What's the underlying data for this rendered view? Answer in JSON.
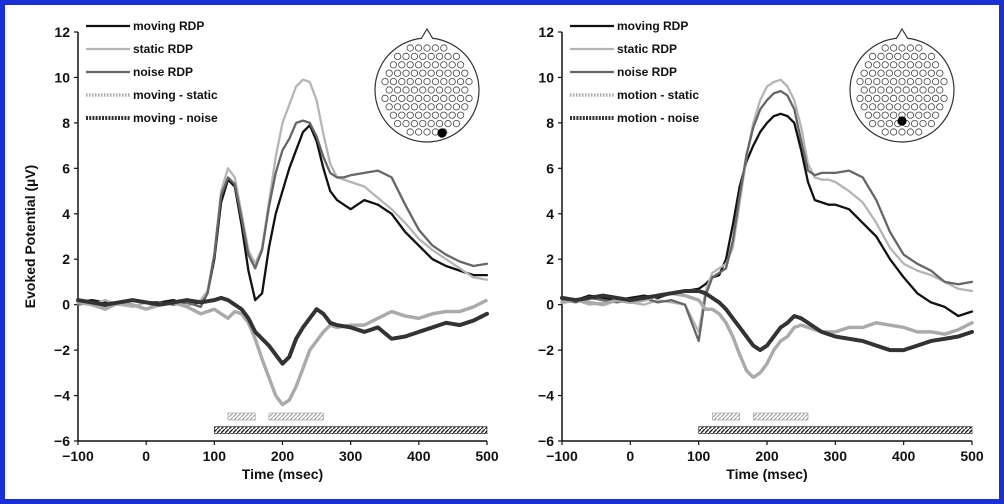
{
  "colors": {
    "frame": "#1a2fd6",
    "moving": "#111111",
    "static": "#b5b5b5",
    "noise": "#666666",
    "diff_static": "#aaaaaa",
    "diff_noise": "#333333"
  },
  "chart_data": [
    {
      "type": "line",
      "xlabel": "Time (msec)",
      "ylabel": "Evoked Potential (µV)",
      "xlim": [
        -100,
        500
      ],
      "ylim": [
        -6,
        12
      ],
      "xticks": [
        -100,
        0,
        100,
        200,
        300,
        400,
        500
      ],
      "yticks": [
        -6,
        -4,
        -2,
        0,
        2,
        4,
        6,
        8,
        10,
        12
      ],
      "legend_position": "top-left",
      "electrode": {
        "highlighted": "right-posterior"
      },
      "series": [
        {
          "name": "moving RDP",
          "style": "solid",
          "color": "#111111",
          "x": [
            -100,
            -80,
            -60,
            -40,
            -20,
            0,
            20,
            40,
            60,
            80,
            90,
            100,
            110,
            120,
            130,
            140,
            150,
            160,
            170,
            180,
            190,
            200,
            210,
            220,
            230,
            240,
            250,
            260,
            270,
            280,
            290,
            300,
            320,
            340,
            360,
            380,
            400,
            420,
            440,
            460,
            480,
            500
          ],
          "y": [
            0.1,
            0.2,
            0.1,
            0.0,
            0.2,
            0.1,
            0.1,
            0.2,
            0.0,
            0.1,
            0.5,
            2.0,
            4.5,
            5.5,
            5.2,
            3.5,
            1.5,
            0.2,
            0.5,
            2.5,
            4.0,
            5.0,
            6.0,
            6.8,
            7.6,
            7.9,
            7.2,
            6.0,
            5.0,
            4.6,
            4.4,
            4.2,
            4.6,
            4.4,
            4.0,
            3.2,
            2.6,
            2.0,
            1.7,
            1.5,
            1.3,
            1.3
          ]
        },
        {
          "name": "static RDP",
          "style": "solid",
          "color": "#b5b5b5",
          "x": [
            -100,
            -80,
            -60,
            -40,
            -20,
            0,
            20,
            40,
            60,
            80,
            90,
            100,
            110,
            120,
            130,
            140,
            150,
            160,
            170,
            180,
            190,
            200,
            210,
            220,
            230,
            240,
            250,
            260,
            270,
            280,
            290,
            300,
            320,
            340,
            360,
            380,
            400,
            420,
            440,
            460,
            480,
            500
          ],
          "y": [
            0.1,
            0.0,
            0.2,
            0.0,
            -0.1,
            0.1,
            0.0,
            0.1,
            0.0,
            0.2,
            0.6,
            2.2,
            5.0,
            6.0,
            5.6,
            4.0,
            2.4,
            1.8,
            2.5,
            4.5,
            6.5,
            8.0,
            8.8,
            9.6,
            9.9,
            9.8,
            9.0,
            7.5,
            6.2,
            5.6,
            5.5,
            5.4,
            5.2,
            4.7,
            4.2,
            3.6,
            2.9,
            2.4,
            2.0,
            1.6,
            1.2,
            1.1
          ]
        },
        {
          "name": "noise RDP",
          "style": "solid",
          "color": "#666666",
          "x": [
            -100,
            -80,
            -60,
            -40,
            -20,
            0,
            20,
            40,
            60,
            80,
            90,
            100,
            110,
            120,
            130,
            140,
            150,
            160,
            170,
            180,
            190,
            200,
            210,
            220,
            230,
            240,
            250,
            260,
            270,
            280,
            290,
            300,
            320,
            340,
            360,
            380,
            400,
            420,
            440,
            460,
            480,
            500
          ],
          "y": [
            0.0,
            0.1,
            -0.1,
            0.1,
            0.0,
            -0.2,
            0.1,
            0.0,
            0.1,
            -0.1,
            0.5,
            2.2,
            4.8,
            5.6,
            5.3,
            3.8,
            2.2,
            1.6,
            2.4,
            4.3,
            5.8,
            6.8,
            7.3,
            8.0,
            8.1,
            8.0,
            7.4,
            6.5,
            5.8,
            5.6,
            5.6,
            5.7,
            5.8,
            5.9,
            5.6,
            4.4,
            3.3,
            2.6,
            2.2,
            1.9,
            1.7,
            1.8
          ]
        },
        {
          "name": "moving - static",
          "style": "dotted",
          "color": "#aaaaaa",
          "x": [
            -100,
            -80,
            -60,
            -40,
            -20,
            0,
            20,
            40,
            60,
            80,
            100,
            110,
            120,
            130,
            140,
            150,
            160,
            170,
            180,
            190,
            200,
            210,
            220,
            230,
            240,
            250,
            260,
            270,
            280,
            300,
            320,
            340,
            360,
            380,
            400,
            420,
            440,
            460,
            480,
            500
          ],
          "y": [
            0.1,
            0.0,
            -0.2,
            0.1,
            0.0,
            -0.2,
            0.0,
            0.1,
            -0.1,
            -0.4,
            -0.2,
            -0.4,
            -0.6,
            -0.3,
            -0.4,
            -0.8,
            -1.5,
            -2.4,
            -3.2,
            -4.0,
            -4.4,
            -4.2,
            -3.6,
            -2.8,
            -2.0,
            -1.6,
            -1.2,
            -0.9,
            -1.0,
            -0.9,
            -0.9,
            -0.6,
            -0.3,
            -0.5,
            -0.6,
            -0.4,
            -0.3,
            -0.3,
            -0.1,
            0.2
          ]
        },
        {
          "name": "moving - noise",
          "style": "beaded",
          "color": "#333333",
          "x": [
            -100,
            -80,
            -60,
            -40,
            -20,
            0,
            20,
            40,
            60,
            80,
            100,
            110,
            120,
            130,
            140,
            150,
            160,
            170,
            180,
            190,
            200,
            210,
            220,
            230,
            240,
            250,
            260,
            270,
            280,
            300,
            320,
            340,
            360,
            380,
            400,
            420,
            440,
            460,
            480,
            500
          ],
          "y": [
            0.2,
            0.1,
            0.0,
            0.1,
            0.2,
            0.1,
            0.0,
            0.1,
            0.2,
            0.1,
            0.2,
            0.3,
            0.2,
            0.0,
            -0.2,
            -0.6,
            -1.2,
            -1.5,
            -1.8,
            -2.2,
            -2.6,
            -2.3,
            -1.5,
            -1.0,
            -0.6,
            -0.2,
            -0.4,
            -0.8,
            -0.9,
            -1.0,
            -1.2,
            -1.0,
            -1.5,
            -1.4,
            -1.2,
            -1.0,
            -0.8,
            -0.9,
            -0.7,
            -0.4
          ]
        }
      ],
      "significance_bars": [
        {
          "series": "moving - static",
          "y": -4.9,
          "ranges": [
            [
              120,
              160
            ],
            [
              180,
              260
            ]
          ]
        },
        {
          "series": "moving - noise",
          "y": -5.5,
          "ranges": [
            [
              100,
              500
            ]
          ]
        }
      ]
    },
    {
      "type": "line",
      "xlabel": "Time (msec)",
      "ylabel": "",
      "xlim": [
        -100,
        500
      ],
      "ylim": [
        -6,
        12
      ],
      "xticks": [
        -100,
        0,
        100,
        200,
        300,
        400,
        500
      ],
      "yticks": [
        -6,
        -4,
        -2,
        0,
        2,
        4,
        6,
        8,
        10,
        12
      ],
      "legend_position": "top-left",
      "electrode": {
        "highlighted": "central-posterior"
      },
      "series": [
        {
          "name": "moving RDP",
          "style": "solid",
          "color": "#111111",
          "x": [
            -100,
            -80,
            -60,
            -40,
            -20,
            0,
            20,
            40,
            60,
            80,
            100,
            110,
            120,
            130,
            140,
            150,
            160,
            170,
            180,
            190,
            200,
            210,
            220,
            230,
            240,
            250,
            260,
            270,
            280,
            290,
            300,
            320,
            340,
            360,
            380,
            400,
            420,
            440,
            460,
            480,
            500
          ],
          "y": [
            0.3,
            0.2,
            0.4,
            0.3,
            0.2,
            0.3,
            0.4,
            0.3,
            0.5,
            0.6,
            0.7,
            0.9,
            1.2,
            1.3,
            2.0,
            3.5,
            5.2,
            6.3,
            7.0,
            7.6,
            8.0,
            8.3,
            8.4,
            8.3,
            8.0,
            6.8,
            5.4,
            4.6,
            4.5,
            4.4,
            4.4,
            4.2,
            3.6,
            3.0,
            2.0,
            1.2,
            0.5,
            0.1,
            -0.1,
            -0.5,
            -0.3
          ]
        },
        {
          "name": "static RDP",
          "style": "solid",
          "color": "#b5b5b5",
          "x": [
            -100,
            -80,
            -60,
            -40,
            -20,
            0,
            20,
            40,
            60,
            80,
            100,
            110,
            120,
            130,
            140,
            150,
            160,
            170,
            180,
            190,
            200,
            210,
            220,
            230,
            240,
            250,
            260,
            270,
            280,
            290,
            300,
            320,
            340,
            360,
            380,
            400,
            420,
            440,
            460,
            480,
            500
          ],
          "y": [
            0.1,
            0.2,
            0.0,
            0.1,
            0.2,
            0.1,
            0.0,
            0.2,
            0.1,
            0.0,
            -1.2,
            0.6,
            1.4,
            1.6,
            1.8,
            2.5,
            4.5,
            6.5,
            8.0,
            9.0,
            9.6,
            9.8,
            9.9,
            9.6,
            9.0,
            7.8,
            6.2,
            5.6,
            5.5,
            5.5,
            5.4,
            5.0,
            4.5,
            3.6,
            2.5,
            1.8,
            1.5,
            1.3,
            1.0,
            0.7,
            0.6
          ]
        },
        {
          "name": "noise RDP",
          "style": "solid",
          "color": "#666666",
          "x": [
            -100,
            -80,
            -60,
            -40,
            -20,
            0,
            20,
            40,
            60,
            80,
            100,
            110,
            120,
            130,
            140,
            150,
            160,
            170,
            180,
            190,
            200,
            210,
            220,
            230,
            240,
            250,
            260,
            270,
            280,
            290,
            300,
            320,
            340,
            360,
            380,
            400,
            420,
            440,
            460,
            480,
            500
          ],
          "y": [
            0.2,
            0.1,
            0.3,
            0.2,
            0.1,
            0.2,
            0.3,
            0.1,
            0.2,
            0.0,
            -1.6,
            0.4,
            1.2,
            1.4,
            1.6,
            2.8,
            4.8,
            6.6,
            7.8,
            8.6,
            9.0,
            9.3,
            9.4,
            9.2,
            8.6,
            7.2,
            5.9,
            5.7,
            5.8,
            5.8,
            5.8,
            5.9,
            5.6,
            4.6,
            3.2,
            2.2,
            1.8,
            1.5,
            1.0,
            0.9,
            1.0
          ]
        },
        {
          "name": "motion - static",
          "style": "dotted",
          "color": "#aaaaaa",
          "x": [
            -100,
            -80,
            -60,
            -40,
            -20,
            0,
            20,
            40,
            60,
            80,
            100,
            110,
            120,
            130,
            140,
            150,
            160,
            170,
            180,
            190,
            200,
            210,
            220,
            230,
            240,
            250,
            260,
            270,
            280,
            300,
            320,
            340,
            360,
            380,
            400,
            420,
            440,
            460,
            480,
            500
          ],
          "y": [
            0.1,
            0.2,
            0.1,
            0.0,
            0.2,
            0.1,
            0.2,
            0.4,
            0.5,
            0.4,
            0.2,
            -0.2,
            -0.2,
            -0.4,
            -0.8,
            -1.4,
            -2.2,
            -2.9,
            -3.2,
            -3.0,
            -2.6,
            -2.0,
            -1.6,
            -1.4,
            -1.0,
            -0.9,
            -1.0,
            -1.1,
            -1.2,
            -1.2,
            -1.0,
            -1.0,
            -0.8,
            -0.9,
            -1.0,
            -1.2,
            -1.2,
            -1.3,
            -1.1,
            -0.8
          ]
        },
        {
          "name": "motion - noise",
          "style": "beaded",
          "color": "#333333",
          "x": [
            -100,
            -80,
            -60,
            -40,
            -20,
            0,
            20,
            40,
            60,
            80,
            100,
            110,
            120,
            130,
            140,
            150,
            160,
            170,
            180,
            190,
            200,
            210,
            220,
            230,
            240,
            250,
            260,
            270,
            280,
            300,
            320,
            340,
            360,
            380,
            400,
            420,
            440,
            460,
            480,
            500
          ],
          "y": [
            0.3,
            0.2,
            0.3,
            0.4,
            0.3,
            0.2,
            0.3,
            0.4,
            0.5,
            0.6,
            0.6,
            0.5,
            0.3,
            0.1,
            -0.2,
            -0.6,
            -1.0,
            -1.4,
            -1.8,
            -2.0,
            -1.8,
            -1.4,
            -1.0,
            -0.8,
            -0.5,
            -0.6,
            -0.8,
            -1.0,
            -1.2,
            -1.4,
            -1.5,
            -1.6,
            -1.8,
            -2.0,
            -2.0,
            -1.8,
            -1.6,
            -1.5,
            -1.4,
            -1.2
          ]
        }
      ],
      "significance_bars": [
        {
          "series": "motion - static",
          "y": -4.9,
          "ranges": [
            [
              120,
              160
            ],
            [
              180,
              260
            ]
          ]
        },
        {
          "series": "motion - noise",
          "y": -5.5,
          "ranges": [
            [
              100,
              500
            ]
          ]
        }
      ]
    }
  ]
}
